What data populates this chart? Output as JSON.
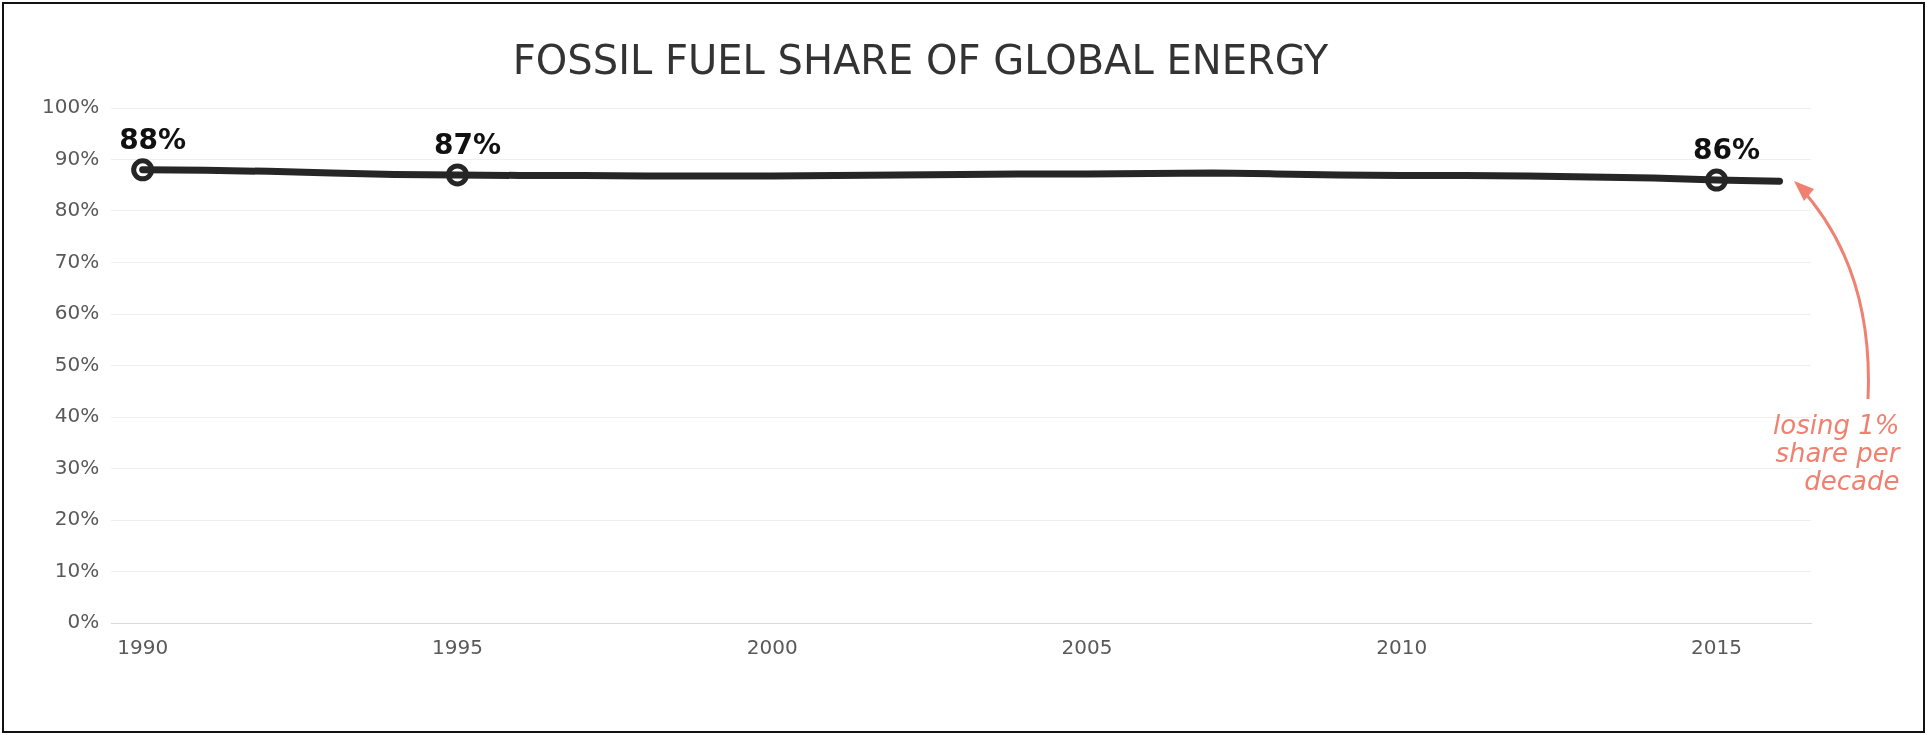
{
  "chart_data": {
    "type": "line",
    "title": "FOSSIL FUEL SHARE OF GLOBAL ENERGY",
    "x": [
      1990,
      1991,
      1992,
      1993,
      1994,
      1995,
      1996,
      1997,
      1998,
      1999,
      2000,
      2001,
      2002,
      2003,
      2004,
      2005,
      2006,
      2007,
      2008,
      2009,
      2010,
      2011,
      2012,
      2013,
      2014,
      2015,
      2016
    ],
    "series": [
      {
        "color": "#262626",
        "marker": "none",
        "values": [
          88,
          87.9,
          87.7,
          87.4,
          87.1,
          87,
          86.9,
          86.9,
          86.8,
          86.8,
          86.8,
          86.9,
          87,
          87.1,
          87.2,
          87.2,
          87.3,
          87.4,
          87.2,
          87,
          86.9,
          86.9,
          86.8,
          86.6,
          86.4,
          86,
          85.8
        ]
      },
      {
        "type": "scatter",
        "color": "#262626",
        "x": [
          1990,
          1995,
          2015
        ],
        "values": [
          88,
          87,
          86
        ],
        "value_labels": [
          "88%",
          "87%",
          "86%"
        ]
      }
    ],
    "xlim": [
      1989.5,
      2016.5
    ],
    "xticks": [
      1990,
      1995,
      2000,
      2005,
      2010,
      2015
    ],
    "ylim": [
      0,
      100
    ],
    "yticks": [
      {
        "value": 0,
        "label": "0%"
      },
      {
        "value": 10,
        "label": "10%"
      },
      {
        "value": 20,
        "label": "20%"
      },
      {
        "value": 30,
        "label": "30%"
      },
      {
        "value": 40,
        "label": "40%"
      },
      {
        "value": 50,
        "label": "50%"
      },
      {
        "value": 60,
        "label": "60%"
      },
      {
        "value": 70,
        "label": "70%"
      },
      {
        "value": 80,
        "label": "80%"
      },
      {
        "value": 90,
        "label": "90%"
      },
      {
        "value": 100,
        "label": "100%"
      }
    ],
    "grid": "y",
    "marker": "circle",
    "legend": false,
    "annotations": [
      "losing 1% share per decade"
    ]
  }
}
